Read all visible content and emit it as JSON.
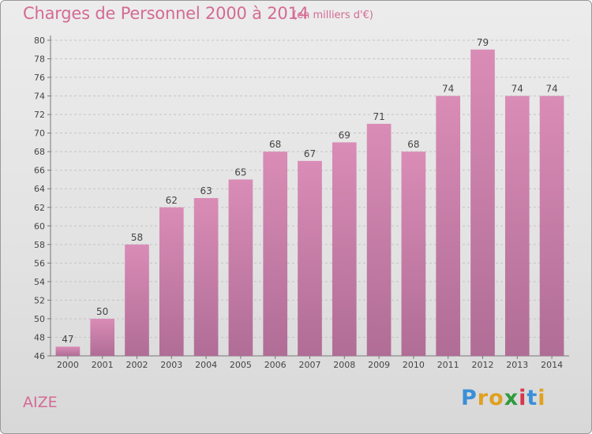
{
  "chart_data": {
    "type": "bar",
    "title": "Charges de Personnel 2000 à 2014",
    "subtitle": "(en milliers d'€)",
    "categories": [
      "2000",
      "2001",
      "2002",
      "2003",
      "2004",
      "2005",
      "2006",
      "2007",
      "2008",
      "2009",
      "2010",
      "2011",
      "2012",
      "2013",
      "2014"
    ],
    "values": [
      47,
      50,
      58,
      62,
      63,
      65,
      68,
      67,
      69,
      71,
      68,
      74,
      79,
      74,
      74
    ],
    "ylim": [
      46,
      80
    ],
    "yticks": [
      46,
      48,
      50,
      52,
      54,
      56,
      58,
      60,
      62,
      64,
      66,
      68,
      70,
      72,
      74,
      76,
      78,
      80
    ],
    "grid": true,
    "bar_color": "#d98cb6",
    "bar_color_dark": "#b06d96"
  },
  "commune": "AIZE",
  "brand": {
    "letters": [
      {
        "ch": "P",
        "color": "#3a8fd8"
      },
      {
        "ch": "r",
        "color": "#e0a020"
      },
      {
        "ch": "o",
        "color": "#e0a020"
      },
      {
        "ch": "x",
        "color": "#2f9a3c"
      },
      {
        "ch": "i",
        "color": "#d8364a"
      },
      {
        "ch": "t",
        "color": "#3a8fd8"
      },
      {
        "ch": "i",
        "color": "#e0a020"
      }
    ]
  }
}
